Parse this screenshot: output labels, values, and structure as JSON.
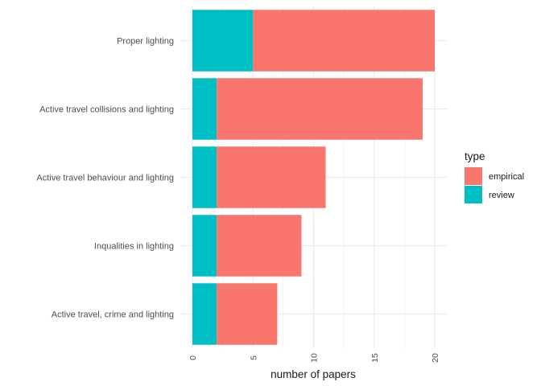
{
  "chart_data": {
    "type": "bar",
    "orientation": "horizontal",
    "stacked": true,
    "categories": [
      "Proper lighting",
      "Active travel collisions and lighting",
      "Active travel behaviour and lighting",
      "Inqualities in lighting",
      "Active travel, crime and lighting"
    ],
    "series": [
      {
        "name": "review",
        "color": "#00BFC4",
        "values": [
          5,
          2,
          2,
          2,
          2
        ]
      },
      {
        "name": "empirical",
        "color": "#F8766D",
        "values": [
          15,
          17,
          9,
          7,
          5
        ]
      }
    ],
    "xlabel": "number of papers",
    "ylabel": "",
    "xlim": [
      0,
      21
    ],
    "xticks": [
      0,
      5,
      10,
      15,
      20
    ],
    "xtick_labels": [
      "0",
      "5",
      "10",
      "15",
      "20"
    ],
    "grid": true,
    "legend": {
      "title": "type",
      "position": "right",
      "entries": [
        {
          "label": "empirical",
          "color": "#F8766D"
        },
        {
          "label": "review",
          "color": "#00BFC4"
        }
      ]
    }
  }
}
